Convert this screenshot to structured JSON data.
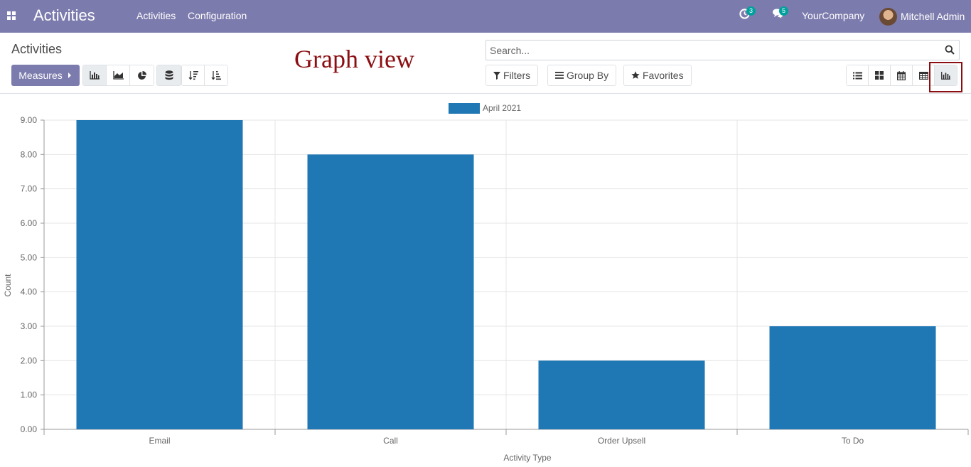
{
  "navbar": {
    "app_title": "Activities",
    "menus": [
      "Activities",
      "Configuration"
    ],
    "activity_count": "3",
    "message_count": "5",
    "company": "YourCompany",
    "user": "Mitchell Admin",
    "background": "#7c7bad"
  },
  "control_panel": {
    "title": "Activities",
    "annotation": "Graph view",
    "measures_label": "Measures",
    "chart_type_icons": [
      "bar-chart-icon",
      "line-chart-icon",
      "pie-chart-icon"
    ],
    "stacked_icon": "database-icon",
    "sort_icons": [
      "sort-descending-icon",
      "sort-ascending-icon"
    ],
    "search_placeholder": "Search...",
    "filters_label": "Filters",
    "groupby_label": "Group By",
    "favorites_label": "Favorites",
    "views": [
      "list-view-icon",
      "kanban-view-icon",
      "calendar-view-icon",
      "pivot-view-icon",
      "graph-view-icon"
    ],
    "active_view": "graph-view-icon",
    "accent": "#7c7bad",
    "annotation_color": "#8b0f12"
  },
  "chart_data": {
    "type": "bar",
    "categories": [
      "Email",
      "Call",
      "Order Upsell",
      "To Do"
    ],
    "series": [
      {
        "name": "April 2021",
        "values": [
          9,
          8,
          2,
          3
        ],
        "color": "#1f77b4"
      }
    ],
    "xlabel": "Activity Type",
    "ylabel": "Count",
    "ylim": [
      0,
      9
    ],
    "yticks": [
      "0.00",
      "1.00",
      "2.00",
      "3.00",
      "4.00",
      "5.00",
      "6.00",
      "7.00",
      "8.00",
      "9.00"
    ],
    "grid": true,
    "legend": "top-center"
  }
}
